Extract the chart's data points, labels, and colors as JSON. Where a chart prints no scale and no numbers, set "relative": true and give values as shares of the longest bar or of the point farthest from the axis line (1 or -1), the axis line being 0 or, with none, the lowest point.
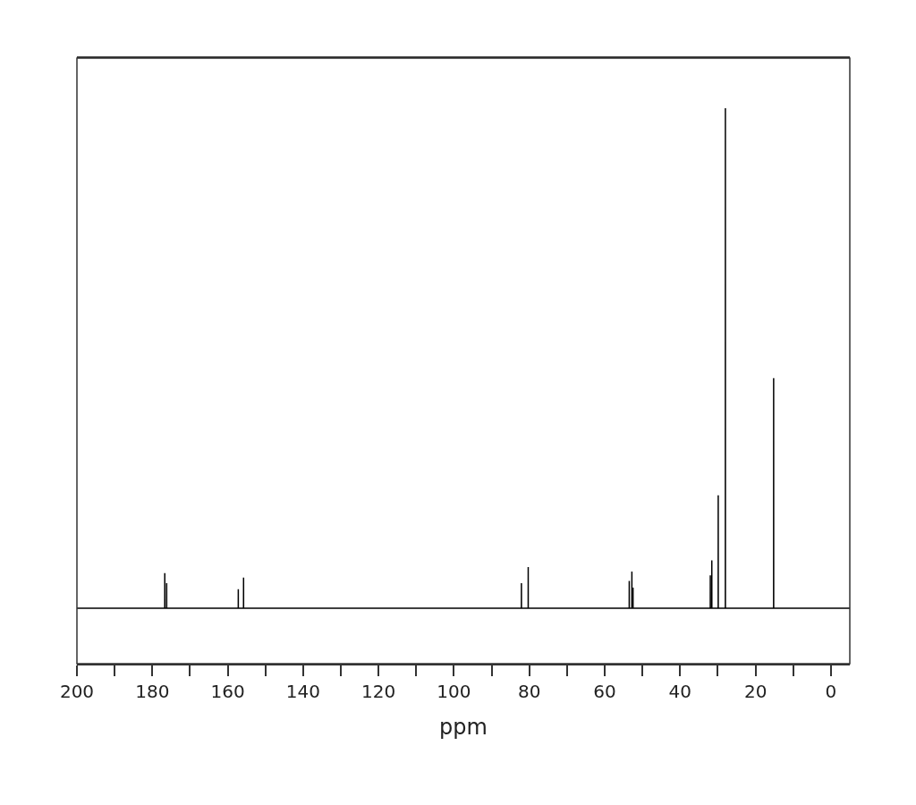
{
  "chart_data": {
    "type": "line",
    "relative": true,
    "xlabel": "ppm",
    "xlim": [
      200,
      -5
    ],
    "xticks": [
      200,
      {
        "value": 190,
        "label": null
      },
      180,
      {
        "value": 170,
        "label": null
      },
      160,
      {
        "value": 150,
        "label": null
      },
      140,
      {
        "value": 130,
        "label": null
      },
      120,
      {
        "value": 110,
        "label": null
      },
      100,
      {
        "value": 90,
        "label": null
      },
      80,
      {
        "value": 70,
        "label": null
      },
      60,
      {
        "value": 50,
        "label": null
      },
      40,
      {
        "value": 30,
        "label": null
      },
      20,
      {
        "value": 10,
        "label": null
      },
      0
    ],
    "marker": "none",
    "line_style": "solid",
    "series": [
      {
        "color": "#000000",
        "x": [
          200,
          176.71,
          176.7,
          176.69,
          176.21,
          176.2,
          176.19,
          157.21,
          157.2,
          157.19,
          155.81,
          155.8,
          155.79,
          82.11,
          82.1,
          82.09,
          80.31,
          80.3,
          80.29,
          53.51,
          53.5,
          53.49,
          52.81,
          52.8,
          52.79,
          52.51,
          52.5,
          52.49,
          32.01,
          32.0,
          31.99,
          31.61,
          31.6,
          31.59,
          29.91,
          29.9,
          29.89,
          28.01,
          28.0,
          27.99,
          15.21,
          15.2,
          15.19,
          -5
        ],
        "values": [
          0.1,
          0.1,
          0.163,
          0.1,
          0.1,
          0.145,
          0.1,
          0.1,
          0.134,
          0.1,
          0.1,
          0.155,
          0.1,
          0.1,
          0.145,
          0.1,
          0.1,
          0.174,
          0.1,
          0.1,
          0.149,
          0.1,
          0.1,
          0.166,
          0.1,
          0.1,
          0.137,
          0.1,
          0.1,
          0.159,
          0.1,
          0.1,
          0.186,
          0.1,
          0.1,
          0.303,
          0.1,
          0.1,
          1,
          0.1,
          0.1,
          0.514,
          0.1,
          0.1
        ]
      }
    ]
  }
}
